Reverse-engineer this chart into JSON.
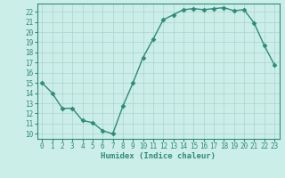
{
  "x": [
    0,
    1,
    2,
    3,
    4,
    5,
    6,
    7,
    8,
    9,
    10,
    11,
    12,
    13,
    14,
    15,
    16,
    17,
    18,
    19,
    20,
    21,
    22,
    23
  ],
  "y": [
    15,
    14,
    12.5,
    12.5,
    11.3,
    11.1,
    10.3,
    10,
    12.7,
    15,
    17.5,
    19.3,
    21.2,
    21.7,
    22.2,
    22.3,
    22.2,
    22.3,
    22.4,
    22.1,
    22.2,
    20.9,
    18.7,
    16.8
  ],
  "line_color": "#2e8b7a",
  "marker": "D",
  "markersize": 2.5,
  "linewidth": 1.0,
  "bg_color": "#cceee8",
  "grid_color": "#aad4ce",
  "xlabel": "Humidex (Indice chaleur)",
  "xlim": [
    -0.5,
    23.5
  ],
  "ylim": [
    9.5,
    22.8
  ],
  "yticks": [
    10,
    11,
    12,
    13,
    14,
    15,
    16,
    17,
    18,
    19,
    20,
    21,
    22
  ],
  "xticks": [
    0,
    1,
    2,
    3,
    4,
    5,
    6,
    7,
    8,
    9,
    10,
    11,
    12,
    13,
    14,
    15,
    16,
    17,
    18,
    19,
    20,
    21,
    22,
    23
  ],
  "tick_fontsize": 5.5,
  "label_fontsize": 6.5,
  "spine_color": "#2e8b7a"
}
